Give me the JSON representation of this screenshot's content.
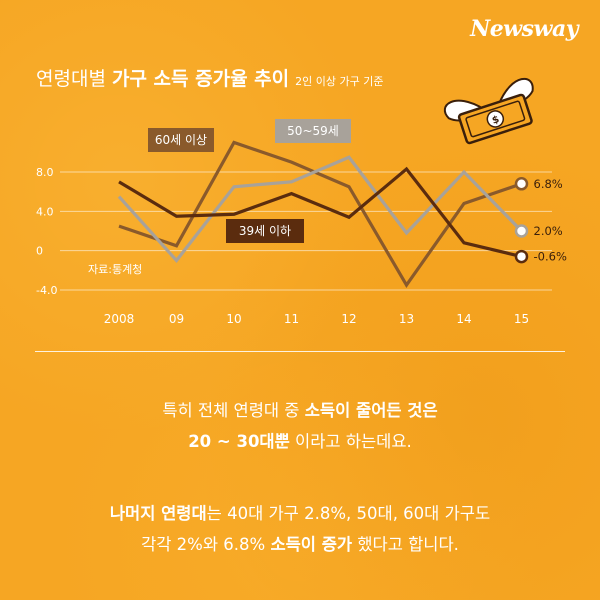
{
  "brand": {
    "logo": "Newsway"
  },
  "title": {
    "part1": "연령대별 ",
    "part2": "가구 소득 증가율 추이",
    "note": "2인 이상 가구 기준"
  },
  "chart_data": {
    "type": "line",
    "x": [
      "2008",
      "09",
      "10",
      "11",
      "12",
      "13",
      "14",
      "15"
    ],
    "y_ticks": [
      "8.0",
      "4.0",
      "0",
      "-4.0"
    ],
    "ylim": [
      -4,
      8
    ],
    "source": "자료:통계청",
    "series": [
      {
        "name": "60세 이상",
        "color": "#8a5a2b",
        "values": [
          2.5,
          0.5,
          11.0,
          9.0,
          6.5,
          -3.5,
          4.8,
          6.8
        ],
        "end_label": "6.8%"
      },
      {
        "name": "50~59세",
        "color": "#a8a29a",
        "values": [
          5.5,
          -1.0,
          6.5,
          7.0,
          9.5,
          1.8,
          8.0,
          2.0
        ],
        "end_label": "2.0%"
      },
      {
        "name": "39세 이하",
        "color": "#5b2c0e",
        "values": [
          7.0,
          3.5,
          3.7,
          5.8,
          3.4,
          8.3,
          0.8,
          -0.6
        ],
        "end_label": "-0.6%"
      }
    ]
  },
  "text": {
    "p1_line1_a": "특히 전체 연령대 중 ",
    "p1_line1_b": "소득이 줄어든 것은",
    "p1_line2_a": "20 ~ 30대뿐",
    "p1_line2_b": " 이라고 하는데요.",
    "p2_line1_a": "나머지 연령대",
    "p2_line1_b": "는  40대 가구 2.8%, 50대, 60대 가구도",
    "p2_line2_a": "각각 2%와 6.8% ",
    "p2_line2_b": "소득이 증가",
    "p2_line2_c": " 했다고 합니다."
  }
}
